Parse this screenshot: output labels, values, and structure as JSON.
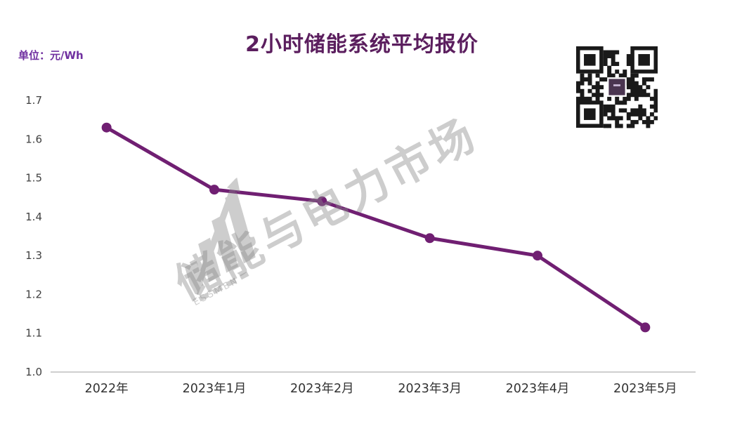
{
  "page": {
    "title": "2小时储能系统平均报价",
    "unit_label": "单位：元/Wh"
  },
  "watermark": {
    "text": "储能与电力市场",
    "sub_text": "ESSMEN"
  },
  "colors": {
    "line": "#701f72",
    "point": "#701f72",
    "title": "#5b1e5e",
    "unit_label": "#7030a0",
    "axis_text": "#404040",
    "x_label_text": "#333333",
    "axis_line": "#bfbfbf",
    "watermark": "#8a8a8a",
    "qr_dark": "#1a1a1a",
    "qr_center": "#4a3550"
  },
  "chart_data": {
    "type": "line",
    "title": "2小时储能系统平均报价",
    "unit": "元/Wh",
    "categories": [
      "2022年",
      "2023年1月",
      "2023年2月",
      "2023年3月",
      "2023年4月",
      "2023年5月"
    ],
    "values": [
      1.63,
      1.47,
      1.44,
      1.345,
      1.3,
      1.115
    ],
    "ylim": [
      1.0,
      1.7
    ],
    "yticks": [
      1.0,
      1.1,
      1.2,
      1.3,
      1.4,
      1.5,
      1.6,
      1.7
    ],
    "grid": false,
    "legend": "none",
    "series_name": "2小时储能系统平均报价"
  }
}
